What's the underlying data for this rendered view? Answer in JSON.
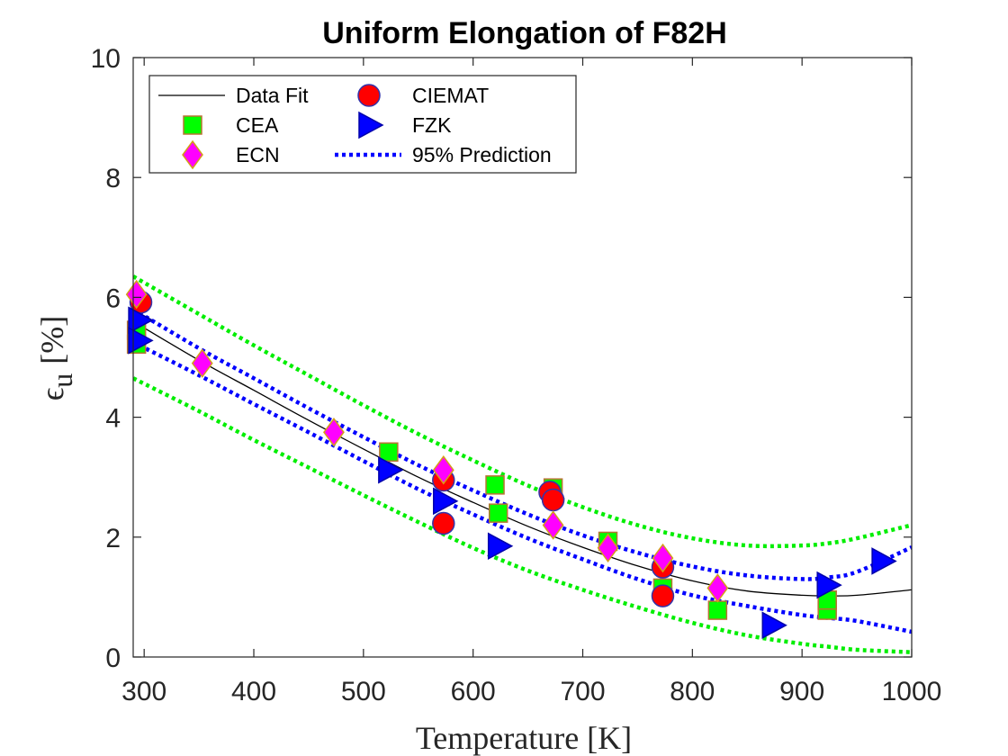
{
  "chart_data": {
    "type": "scatter",
    "title": "Uniform Elongation of F82H",
    "xlabel": "Temperature [K]",
    "ylabel": {
      "symbol": "ϵ",
      "subscript": "u",
      "unit": "[%]"
    },
    "xlim": [
      290,
      1000
    ],
    "ylim": [
      0,
      10
    ],
    "xticks": [
      300,
      400,
      500,
      600,
      700,
      800,
      900,
      1000
    ],
    "yticks": [
      0,
      2,
      4,
      6,
      8,
      10
    ],
    "grid": false,
    "legend_placement": "top-left",
    "legend_order": [
      "Data Fit",
      "CIEMAT",
      "CEA",
      "FZK",
      "ECN",
      "95% Prediction"
    ],
    "fit": {
      "name": "Data Fit",
      "color": "#000000",
      "x": [
        290,
        350,
        400,
        450,
        500,
        550,
        600,
        650,
        700,
        750,
        800,
        850,
        900,
        925,
        950,
        1000
      ],
      "y": [
        5.6,
        4.95,
        4.45,
        3.95,
        3.47,
        3.0,
        2.58,
        2.18,
        1.83,
        1.52,
        1.27,
        1.1,
        1.03,
        1.02,
        1.03,
        1.12
      ]
    },
    "prediction_bands": {
      "name": "95% Prediction",
      "color_inner": "#0000ff",
      "color_outer": "#00ee00",
      "x": [
        290,
        350,
        400,
        450,
        500,
        550,
        600,
        650,
        700,
        750,
        800,
        850,
        900,
        925,
        950,
        1000
      ],
      "inner_upper": [
        5.8,
        5.15,
        4.65,
        4.15,
        3.67,
        3.2,
        2.78,
        2.38,
        2.03,
        1.74,
        1.51,
        1.36,
        1.3,
        1.33,
        1.42,
        1.83
      ],
      "inner_lower": [
        5.25,
        4.7,
        4.22,
        3.75,
        3.27,
        2.8,
        2.38,
        1.98,
        1.63,
        1.3,
        1.03,
        0.85,
        0.7,
        0.65,
        0.6,
        0.42
      ],
      "outer_upper": [
        6.35,
        5.72,
        5.2,
        4.7,
        4.2,
        3.72,
        3.28,
        2.86,
        2.5,
        2.2,
        1.98,
        1.86,
        1.86,
        1.9,
        1.98,
        2.2
      ],
      "outer_lower": [
        4.65,
        4.1,
        3.62,
        3.16,
        2.7,
        2.25,
        1.82,
        1.44,
        1.12,
        0.83,
        0.57,
        0.36,
        0.22,
        0.17,
        0.12,
        0.08
      ]
    },
    "series": [
      {
        "name": "CEA",
        "marker": "square",
        "color": "#00ff00",
        "edge": "#b87333",
        "x": [
          293,
          293,
          523,
          620,
          623,
          673,
          723,
          773,
          823,
          923,
          923
        ],
        "y": [
          5.22,
          5.45,
          3.42,
          2.87,
          2.4,
          2.82,
          1.93,
          1.15,
          0.78,
          0.78,
          0.95
        ]
      },
      {
        "name": "CIEMAT",
        "marker": "circle",
        "color": "#ff0000",
        "edge": "#3333aa",
        "x": [
          297,
          573,
          573,
          670,
          673,
          773,
          773
        ],
        "y": [
          5.92,
          2.95,
          2.23,
          2.75,
          2.62,
          1.5,
          1.02
        ]
      },
      {
        "name": "FZK",
        "marker": "triangle-right",
        "color": "#0000ff",
        "edge": "#0000aa",
        "x": [
          295,
          295,
          523,
          573,
          623,
          873,
          923,
          973
        ],
        "y": [
          5.62,
          5.28,
          3.12,
          2.6,
          1.85,
          0.53,
          1.2,
          1.6
        ]
      },
      {
        "name": "ECN",
        "marker": "diamond",
        "color": "#ff00ff",
        "edge": "#d4a017",
        "x": [
          293,
          353,
          473,
          573,
          673,
          723,
          773,
          823
        ],
        "y": [
          6.05,
          4.9,
          3.75,
          3.12,
          2.2,
          1.82,
          1.65,
          1.15
        ]
      }
    ]
  }
}
